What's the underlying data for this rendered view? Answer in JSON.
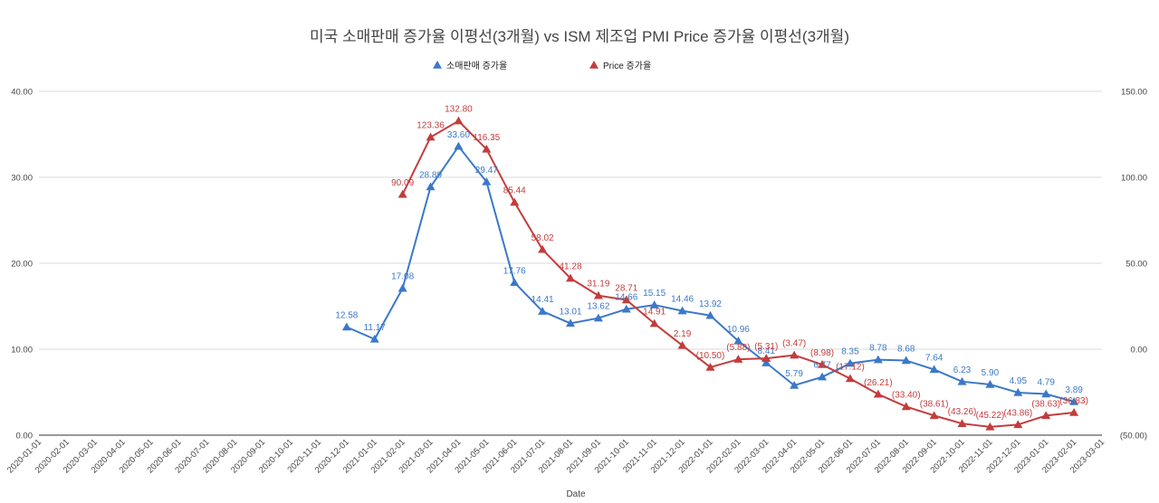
{
  "chart_data": {
    "type": "line",
    "title": "미국 소매판매 증가율 이평선(3개월) vs ISM 제조업 PMI Price 증가율 이평선(3개월)",
    "xlabel": "Date",
    "ylabel_left": "",
    "ylabel_right": "",
    "legend_position": "top",
    "grid": true,
    "categories": [
      "2020-01-01",
      "2020-02-01",
      "2020-03-01",
      "2020-04-01",
      "2020-05-01",
      "2020-06-01",
      "2020-07-01",
      "2020-08-01",
      "2020-09-01",
      "2020-10-01",
      "2020-11-01",
      "2020-12-01",
      "2021-01-01",
      "2021-02-01",
      "2021-03-01",
      "2021-04-01",
      "2021-05-01",
      "2021-06-01",
      "2021-07-01",
      "2021-08-01",
      "2021-09-01",
      "2021-10-01",
      "2021-11-01",
      "2021-12-01",
      "2022-01-01",
      "2022-02-01",
      "2022-03-01",
      "2022-04-01",
      "2022-05-01",
      "2022-06-01",
      "2022-07-01",
      "2022-08-01",
      "2022-09-01",
      "2022-10-01",
      "2022-11-01",
      "2022-12-01",
      "2023-01-01",
      "2023-02-01",
      "2023-03-01"
    ],
    "y_left": {
      "min": 0,
      "max": 40,
      "ticks": [
        "0.00",
        "10.00",
        "20.00",
        "30.00",
        "40.00"
      ]
    },
    "y_right": {
      "min": -50,
      "max": 150,
      "ticks": [
        "(50.00)",
        "0.00",
        "50.00",
        "100.00",
        "150.00"
      ]
    },
    "series": [
      {
        "name": "소매판매 증가율",
        "axis": "left",
        "color": "#3b78c9",
        "values": [
          null,
          null,
          null,
          null,
          null,
          null,
          null,
          null,
          null,
          null,
          null,
          12.58,
          11.17,
          17.08,
          28.89,
          33.6,
          29.47,
          17.76,
          14.41,
          13.01,
          13.62,
          14.66,
          15.15,
          14.46,
          13.92,
          10.96,
          8.41,
          5.79,
          6.77,
          8.35,
          8.78,
          8.68,
          7.64,
          6.23,
          5.9,
          4.95,
          4.79,
          3.89,
          null
        ],
        "labels": [
          null,
          null,
          null,
          null,
          null,
          null,
          null,
          null,
          null,
          null,
          null,
          "12.58",
          "11.17",
          "17.08",
          "28.89",
          "33.60",
          "29.47",
          "17.76",
          "14.41",
          "13.01",
          "13.62",
          "14.66",
          "15.15",
          "14.46",
          "13.92",
          "10.96",
          "8.41",
          "5.79",
          "6.77",
          "8.35",
          "8.78",
          "8.68",
          "7.64",
          "6.23",
          "5.90",
          "4.95",
          "4.79",
          "3.89",
          null
        ]
      },
      {
        "name": "Price 증가율",
        "axis": "right",
        "color": "#c43c3c",
        "values": [
          null,
          null,
          null,
          null,
          null,
          null,
          null,
          null,
          null,
          null,
          null,
          null,
          null,
          90.09,
          123.36,
          132.8,
          116.35,
          85.44,
          58.02,
          41.28,
          31.19,
          28.71,
          14.91,
          2.19,
          -10.5,
          -5.88,
          -5.31,
          -3.47,
          -8.98,
          -17.12,
          -26.21,
          -33.4,
          -38.61,
          -43.26,
          -45.22,
          -43.86,
          -38.63,
          -36.83,
          null
        ],
        "labels": [
          null,
          null,
          null,
          null,
          null,
          null,
          null,
          null,
          null,
          null,
          null,
          null,
          null,
          "90.09",
          "123.36",
          "132.80",
          "116.35",
          "85.44",
          "58.02",
          "41.28",
          "31.19",
          "28.71",
          "14.91",
          "2.19",
          "(10.50)",
          "(5.88)",
          "(5.31)",
          "(3.47)",
          "(8.98)",
          "(17.12)",
          "(26.21)",
          "(33.40)",
          "(38.61)",
          "(43.26)",
          "(45.22)",
          "(43.86)",
          "(38.63)",
          "(36.83)",
          null
        ]
      }
    ]
  }
}
